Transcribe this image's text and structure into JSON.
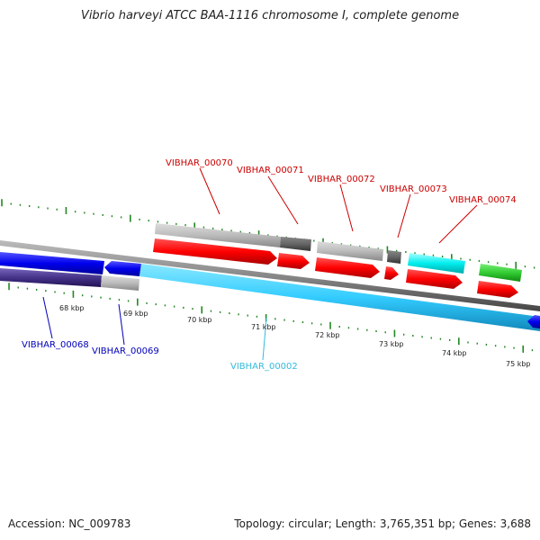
{
  "title": "Vibrio harveyi ATCC BAA-1116 chromosome I, complete genome",
  "footer": {
    "accession": "Accession: NC_009783",
    "summary": "Topology: circular; Length: 3,765,351 bp; Genes: 3,688"
  },
  "scale": [
    "68 kbp",
    "69 kbp",
    "70 kbp",
    "71 kbp",
    "72 kbp",
    "73 kbp",
    "74 kbp",
    "75 kbp"
  ],
  "gene_labels": {
    "VIBHAR_00070": "VIBHAR_00070",
    "VIBHAR_00071": "VIBHAR_00071",
    "VIBHAR_00072": "VIBHAR_00072",
    "VIBHAR_00073": "VIBHAR_00073",
    "VIBHAR_00074": "VIBHAR_00074",
    "VIBHAR_00068": "VIBHAR_00068",
    "VIBHAR_00069": "VIBHAR_00069",
    "VIBHAR_00002": "VIBHAR_00002"
  },
  "colors": {
    "forward_label": "#cc0000",
    "reverse_label": "#0000bb",
    "rna_label": "#33bbdd",
    "cds": "#ff0000",
    "reverse_cds": "#0000ee",
    "rrna": "#33ccff",
    "trna": "#00eeee",
    "misc": "#33cc33",
    "gene_light": "#bbbbbb",
    "gene_dark": "#666666",
    "pseudo": "#443388",
    "backbone": "#888888",
    "ticks": "#228822"
  },
  "icons": [
    "forward-arrow-icon",
    "reverse-arrow-icon"
  ]
}
